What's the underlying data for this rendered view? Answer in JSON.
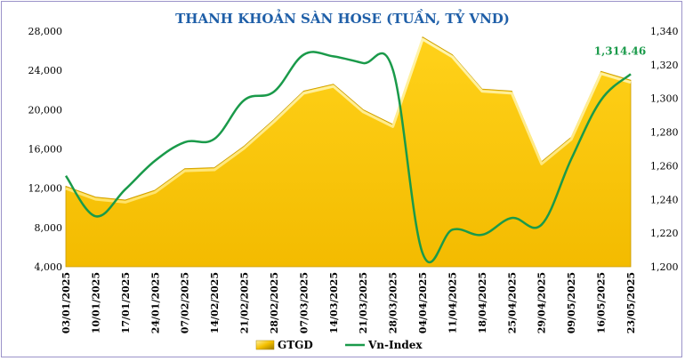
{
  "chart_data": {
    "type": "area",
    "title": "THANH KHOẢN SÀN HOSE (TUẦN, TỶ VND)",
    "categories": [
      "03/01/2025",
      "10/01/2025",
      "17/01/2025",
      "24/01/2025",
      "07/02/2025",
      "14/02/2025",
      "21/02/2025",
      "28/02/2025",
      "07/03/2025",
      "14/03/2025",
      "21/03/2025",
      "28/03/2025",
      "04/04/2025",
      "11/04/2025",
      "18/04/2025",
      "25/04/2025",
      "29/04/2025",
      "09/05/2025",
      "16/05/2025",
      "23/05/2025"
    ],
    "series": [
      {
        "name": "GTGD",
        "type": "area",
        "axis": "left",
        "color": "#f5c000",
        "values": [
          12200,
          11100,
          10800,
          11800,
          14000,
          14100,
          16300,
          19000,
          21900,
          22600,
          20000,
          18500,
          27400,
          25600,
          22100,
          21900,
          14700,
          17200,
          23900,
          23000
        ]
      },
      {
        "name": "Vn-Index",
        "type": "line",
        "axis": "right",
        "color": "#1a9a4a",
        "values": [
          1254,
          1230,
          1246,
          1263,
          1274,
          1276,
          1299,
          1304,
          1326,
          1325,
          1321,
          1317,
          1208,
          1222,
          1219,
          1229,
          1225,
          1264,
          1299,
          1314.46
        ]
      }
    ],
    "y_left": {
      "ylim": [
        4000,
        28000
      ],
      "ticks": [
        "4,000",
        "8,000",
        "12,000",
        "16,000",
        "20,000",
        "24,000",
        "28,000"
      ]
    },
    "y_right": {
      "ylim": [
        1200,
        1340
      ],
      "ticks": [
        "1,200",
        "1,220",
        "1,240",
        "1,260",
        "1,280",
        "1,300",
        "1,320",
        "1,340"
      ]
    },
    "annotation": {
      "text": "1,314.46",
      "color": "#1a9a4a"
    },
    "legend": {
      "position": "bottom",
      "items": [
        "GTGD",
        "Vn-Index"
      ]
    },
    "grid": false
  }
}
